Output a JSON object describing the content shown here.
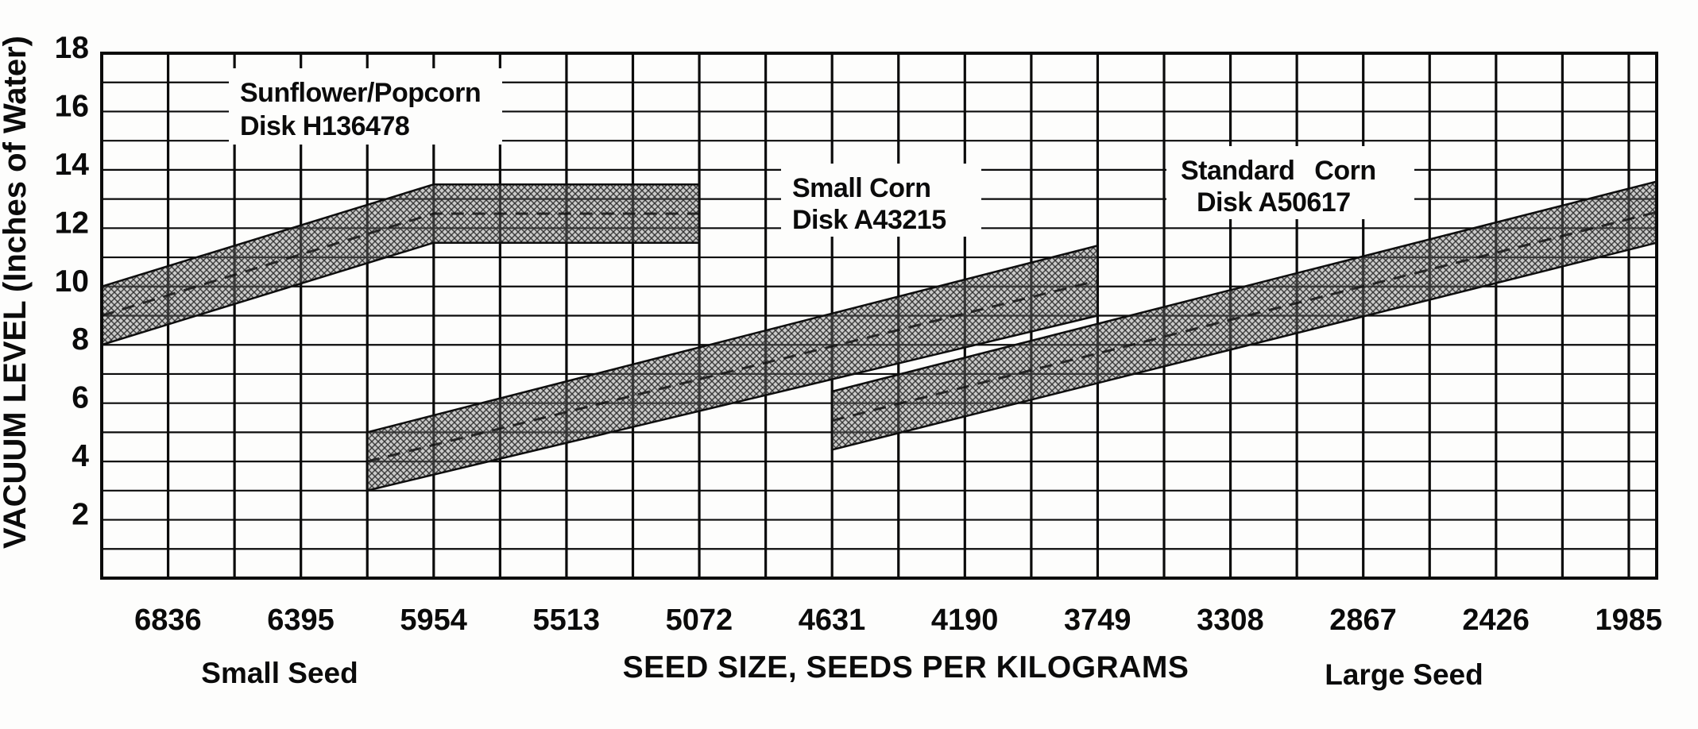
{
  "chart_data": {
    "type": "area",
    "title": "",
    "xlabel": "SEED SIZE, SEEDS PER KILOGRAMS",
    "ylabel": "VACUUM LEVEL (Inches of Water)",
    "x_annotation_left": "Small Seed",
    "x_annotation_right": "Large Seed",
    "x_ticks": [
      6836,
      6395,
      5954,
      5513,
      5072,
      4631,
      4190,
      3749,
      3308,
      2867,
      2426,
      1985
    ],
    "y_ticks": [
      18,
      16,
      14,
      12,
      10,
      8,
      6,
      4,
      2
    ],
    "x_range": [
      7056,
      1892
    ],
    "y_range": [
      0,
      18
    ],
    "x_grid_step_seeds": 220.5,
    "y_grid_step": 1,
    "grid": "on",
    "legend_position": "labels-inside-plot",
    "series": [
      {
        "name": "Sunflower/Popcorn",
        "disk": "Disk H136478",
        "label_lines": [
          "Sunflower/Popcorn",
          "Disk H136478"
        ],
        "upper": [
          [
            7056,
            10.0
          ],
          [
            5954,
            13.5
          ],
          [
            5072,
            13.5
          ]
        ],
        "lower": [
          [
            7056,
            8.0
          ],
          [
            5954,
            11.5
          ],
          [
            5072,
            11.5
          ]
        ],
        "center_dashed": [
          [
            7056,
            9.0
          ],
          [
            5954,
            12.5
          ],
          [
            5072,
            12.5
          ]
        ]
      },
      {
        "name": "Small Corn",
        "disk": "Disk A43215",
        "label_lines": [
          "Small Corn",
          "Disk A43215"
        ],
        "upper": [
          [
            6175,
            5.0
          ],
          [
            3749,
            11.4
          ]
        ],
        "lower": [
          [
            6175,
            3.0
          ],
          [
            3749,
            9.0
          ]
        ],
        "center_dashed": [
          [
            6175,
            4.0
          ],
          [
            3749,
            10.2
          ]
        ]
      },
      {
        "name": "Standard Corn",
        "disk": "Disk A50617",
        "label_lines": [
          "Standard Corn",
          "Disk A50617"
        ],
        "upper": [
          [
            4631,
            6.4
          ],
          [
            1892,
            13.6
          ]
        ],
        "lower": [
          [
            4631,
            4.4
          ],
          [
            1892,
            11.5
          ]
        ],
        "center_dashed": [
          [
            4631,
            5.4
          ],
          [
            1892,
            12.55
          ]
        ]
      }
    ],
    "colors": {
      "ink": "#0b0b0b",
      "band_base_gray": "#828282",
      "hatch_line": "#2b2b2b",
      "background": "#fdfdfc"
    }
  }
}
